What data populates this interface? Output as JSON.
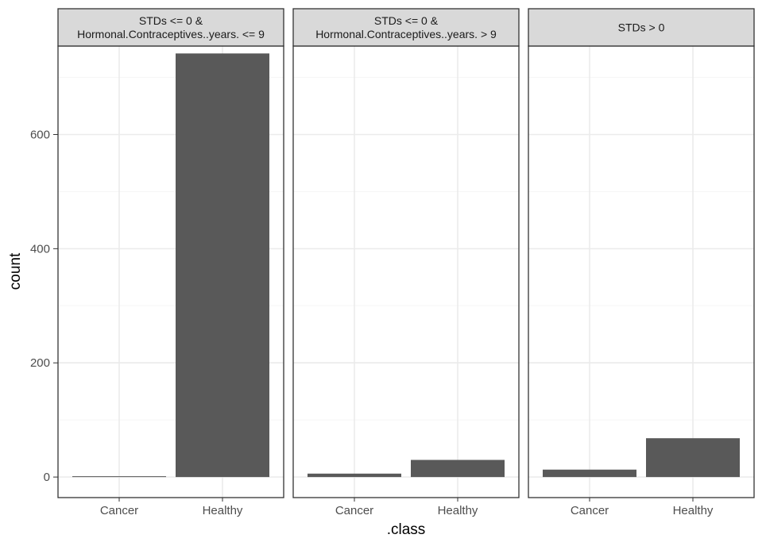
{
  "chart_data": {
    "type": "bar",
    "facet_layout": "1x3",
    "xlabel": ".class",
    "ylabel": "count",
    "ylim": [
      -36,
      755
    ],
    "yticks": [
      0,
      200,
      400,
      600
    ],
    "grid": true,
    "colors": {
      "bar": "#595959",
      "strip_bg": "#d9d9d9",
      "panel_border": "#333333",
      "grid_major": "#ebebeb",
      "grid_minor": "#f5f5f5"
    },
    "categories": [
      "Cancer",
      "Healthy"
    ],
    "facets": [
      {
        "strip_lines": [
          "STDs <= 0 &",
          "Hormonal.Contraceptives..years. <= 9"
        ],
        "values": [
          1,
          742
        ]
      },
      {
        "strip_lines": [
          "STDs <= 0 &",
          "Hormonal.Contraceptives..years. > 9"
        ],
        "values": [
          6,
          30
        ]
      },
      {
        "strip_lines": [
          "STDs > 0"
        ],
        "values": [
          13,
          68
        ]
      }
    ]
  }
}
